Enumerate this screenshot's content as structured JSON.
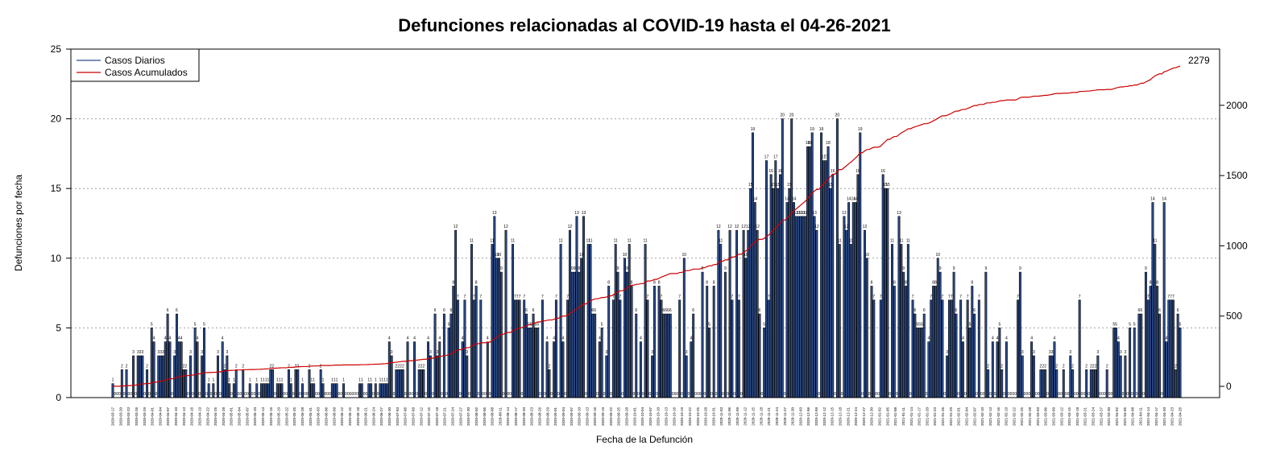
{
  "chart_data": {
    "type": "bar",
    "title": "Defunciones relacionadas al COVID-19 hasta el 04-26-2021",
    "xlabel": "Fecha de la Defunción",
    "ylabel": "Defunciones por fecha",
    "ylim": [
      0,
      25
    ],
    "y_ticks": [
      "0",
      "5",
      "10",
      "15",
      "20",
      "25"
    ],
    "y2lim": [
      -80,
      2400
    ],
    "y2_ticks": [
      "0",
      "500",
      "1000",
      "1500",
      "2000"
    ],
    "grid": "horizontal dotted",
    "legend": {
      "placement": "top-left",
      "entries": [
        "Casos Diarios",
        "Casos Acumulados"
      ]
    },
    "colors": {
      "bars": "#2c4c8c",
      "bar_edge": "#000000",
      "cumulative": "#cc0000",
      "grid": "#a0a0a0"
    },
    "cumulative_end_label": "2279",
    "x_tick_labels": [
      "2020-03-17",
      "2020-03-20",
      "2020-03-23",
      "2020-03-26",
      "2020-03-29",
      "2020-04-01",
      "2020-04-04",
      "2020-04-07",
      "2020-04-10",
      "2020-04-13",
      "2020-04-16",
      "2020-04-19",
      "2020-04-22",
      "2020-04-25",
      "2020-04-28",
      "2020-05-01",
      "2020-05-04",
      "2020-05-07",
      "2020-05-10",
      "2020-05-13",
      "2020-05-16",
      "2020-05-19",
      "2020-05-22",
      "2020-05-25",
      "2020-05-28",
      "2020-05-31",
      "2020-06-03",
      "2020-06-06",
      "2020-06-09",
      "2020-06-12",
      "2020-06-15",
      "2020-06-18",
      "2020-06-21",
      "2020-06-24",
      "2020-06-27",
      "2020-06-30",
      "2020-07-03",
      "2020-07-06",
      "2020-07-09",
      "2020-07-12",
      "2020-07-15",
      "2020-07-18",
      "2020-07-21",
      "2020-07-24",
      "2020-07-27",
      "2020-07-30",
      "2020-08-02",
      "2020-08-05",
      "2020-08-08",
      "2020-08-11",
      "2020-08-14",
      "2020-08-17",
      "2020-08-20",
      "2020-08-23",
      "2020-08-26",
      "2020-08-29",
      "2020-09-01",
      "2020-09-04",
      "2020-09-07",
      "2020-09-10",
      "2020-09-13",
      "2020-09-16",
      "2020-09-19",
      "2020-09-22",
      "2020-09-25",
      "2020-09-28",
      "2020-10-01",
      "2020-10-04",
      "2020-10-07",
      "2020-10-10",
      "2020-10-13",
      "2020-10-16",
      "2020-10-19",
      "2020-10-22",
      "2020-10-25",
      "2020-10-28",
      "2020-10-31",
      "2020-11-03",
      "2020-11-06",
      "2020-11-09",
      "2020-11-12",
      "2020-11-15",
      "2020-11-18",
      "2020-11-21",
      "2020-11-24",
      "2020-11-27",
      "2020-11-30",
      "2020-12-03",
      "2020-12-06",
      "2020-12-09",
      "2020-12-12",
      "2020-12-15",
      "2020-12-18",
      "2020-12-21",
      "2020-12-24",
      "2020-12-27",
      "2020-12-30",
      "2021-01-02",
      "2021-01-05",
      "2021-01-08",
      "2021-01-11",
      "2021-01-14",
      "2021-01-17",
      "2021-01-20",
      "2021-01-23",
      "2021-01-26",
      "2021-01-29",
      "2021-02-01",
      "2021-02-04",
      "2021-02-07",
      "2021-02-10",
      "2021-02-13",
      "2021-02-16",
      "2021-02-19",
      "2021-02-22",
      "2021-02-25",
      "2021-02-28",
      "2021-03-03",
      "2021-03-06",
      "2021-03-09",
      "2021-03-12",
      "2021-03-15",
      "2021-03-18",
      "2021-03-21",
      "2021-03-24",
      "2021-03-27",
      "2021-03-30",
      "2021-04-02",
      "2021-04-05",
      "2021-04-08",
      "2021-04-11",
      "2021-04-14",
      "2021-04-17",
      "2021-04-20",
      "2021-04-23",
      "2021-04-26"
    ],
    "values": [
      1,
      0,
      0,
      0,
      2,
      0,
      2,
      0,
      0,
      3,
      0,
      3,
      3,
      3,
      0,
      2,
      0,
      5,
      4,
      0,
      3,
      3,
      3,
      4,
      6,
      4,
      0,
      3,
      6,
      4,
      4,
      2,
      2,
      0,
      3,
      0,
      5,
      4,
      0,
      3,
      5,
      0,
      1,
      0,
      1,
      0,
      3,
      0,
      4,
      2,
      3,
      1,
      0,
      1,
      2,
      0,
      0,
      2,
      0,
      0,
      1,
      0,
      0,
      1,
      0,
      1,
      1,
      1,
      1,
      2,
      2,
      0,
      1,
      1,
      1,
      0,
      0,
      2,
      1,
      0,
      2,
      2,
      0,
      1,
      0,
      0,
      2,
      1,
      1,
      0,
      0,
      2,
      1,
      0,
      0,
      0,
      1,
      1,
      1,
      0,
      0,
      1,
      0,
      0,
      0,
      0,
      0,
      0,
      1,
      1,
      0,
      0,
      1,
      1,
      0,
      1,
      0,
      1,
      1,
      1,
      1,
      4,
      3,
      0,
      2,
      2,
      2,
      2,
      0,
      4,
      0,
      0,
      4,
      0,
      2,
      2,
      2,
      0,
      4,
      3,
      0,
      6,
      3,
      4,
      0,
      6,
      0,
      5,
      6,
      8,
      12,
      7,
      0,
      4,
      7,
      3,
      0,
      11,
      7,
      8,
      0,
      7,
      0,
      0,
      4,
      0,
      11,
      13,
      10,
      10,
      9,
      0,
      12,
      0,
      0,
      11,
      7,
      7,
      7,
      0,
      7,
      6,
      5,
      5,
      6,
      5,
      5,
      0,
      7,
      0,
      4,
      2,
      0,
      4,
      7,
      0,
      11,
      4,
      0,
      7,
      12,
      9,
      9,
      13,
      9,
      10,
      13,
      0,
      11,
      11,
      6,
      6,
      0,
      4,
      5,
      0,
      3,
      8,
      0,
      7,
      11,
      9,
      7,
      0,
      10,
      9,
      11,
      8,
      0,
      6,
      0,
      4,
      0,
      11,
      7,
      0,
      3,
      8,
      0,
      8,
      7,
      6,
      6,
      6,
      6,
      0,
      0,
      0,
      7,
      0,
      10,
      3,
      0,
      4,
      6,
      0,
      0,
      0,
      9,
      0,
      8,
      5,
      0,
      8,
      0,
      12,
      11,
      0,
      9,
      0,
      12,
      7,
      0,
      12,
      7,
      0,
      12,
      10,
      12,
      15,
      19,
      14,
      12,
      6,
      0,
      5,
      17,
      7,
      16,
      15,
      17,
      15,
      16,
      20,
      0,
      14,
      15,
      20,
      14,
      13,
      13,
      13,
      13,
      13,
      18,
      18,
      19,
      13,
      12,
      0,
      19,
      17,
      17,
      18,
      15,
      16,
      0,
      20,
      11,
      0,
      13,
      12,
      14,
      11,
      14,
      14,
      16,
      19,
      0,
      12,
      10,
      0,
      8,
      7,
      0,
      0,
      7,
      16,
      15,
      15,
      0,
      11,
      8,
      0,
      13,
      11,
      9,
      8,
      11,
      0,
      7,
      6,
      5,
      5,
      5,
      6,
      0,
      4,
      7,
      8,
      8,
      10,
      9,
      7,
      0,
      3,
      7,
      7,
      9,
      6,
      0,
      7,
      4,
      0,
      7,
      5,
      8,
      6,
      0,
      7,
      0,
      0,
      9,
      2,
      0,
      4,
      0,
      4,
      5,
      2,
      0,
      4,
      0,
      0,
      0,
      0,
      7,
      9,
      3,
      0,
      0,
      0,
      4,
      3,
      0,
      0,
      2,
      2,
      2,
      0,
      3,
      3,
      4,
      2,
      0,
      0,
      2,
      0,
      0,
      3,
      2,
      0,
      0,
      7,
      0,
      0,
      2,
      0,
      2,
      2,
      2,
      3,
      0,
      0,
      0,
      2,
      0,
      0,
      5,
      5,
      4,
      3,
      0,
      3,
      0,
      5,
      0,
      5,
      0,
      6,
      6,
      0,
      9,
      7,
      8,
      14,
      11,
      8,
      6,
      0,
      14,
      4,
      7,
      7,
      7,
      2,
      6,
      5
    ]
  }
}
